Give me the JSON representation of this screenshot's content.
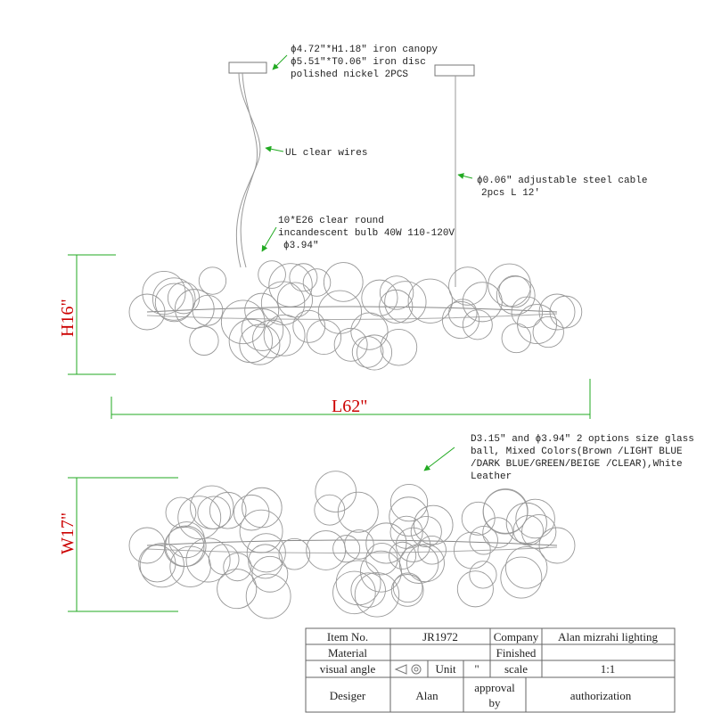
{
  "annotations": {
    "canopy": [
      "ϕ4.72\"*H1.18\" iron canopy",
      "ϕ5.51\"*T0.06\" iron disc",
      "polished nickel 2PCS"
    ],
    "wires": "UL clear wires",
    "cable": [
      "ϕ0.06\" adjustable steel cable",
      "2pcs L 12'"
    ],
    "bulb": [
      "10*E26  clear round",
      "incandescent  bulb  40W 110-120V",
      "ϕ3.94\""
    ],
    "glass": [
      "D3.15\" and ϕ3.94\" 2 options size glass",
      "ball, Mixed Colors(Brown /LIGHT BLUE",
      "/DARK BLUE/GREEN/BEIGE /CLEAR),White",
      "Leather"
    ]
  },
  "dimensions": {
    "height": "H16\"",
    "length": "L62\"",
    "width": "W17\""
  },
  "title_block": {
    "item_label": "Item No.",
    "item": "JR1972",
    "company_label": "Company",
    "company": "Alan mizrahi lighting",
    "material_label": "Material",
    "finished_label": "Finished",
    "angle_label": "visual angle",
    "unit_label": "Unit",
    "unit": "\"",
    "scale_label": "scale",
    "scale": "1:1",
    "designer_label": "Desiger",
    "designer": "Alan",
    "approval_label": [
      "approval",
      "by"
    ],
    "authorization_label": "authorization"
  }
}
